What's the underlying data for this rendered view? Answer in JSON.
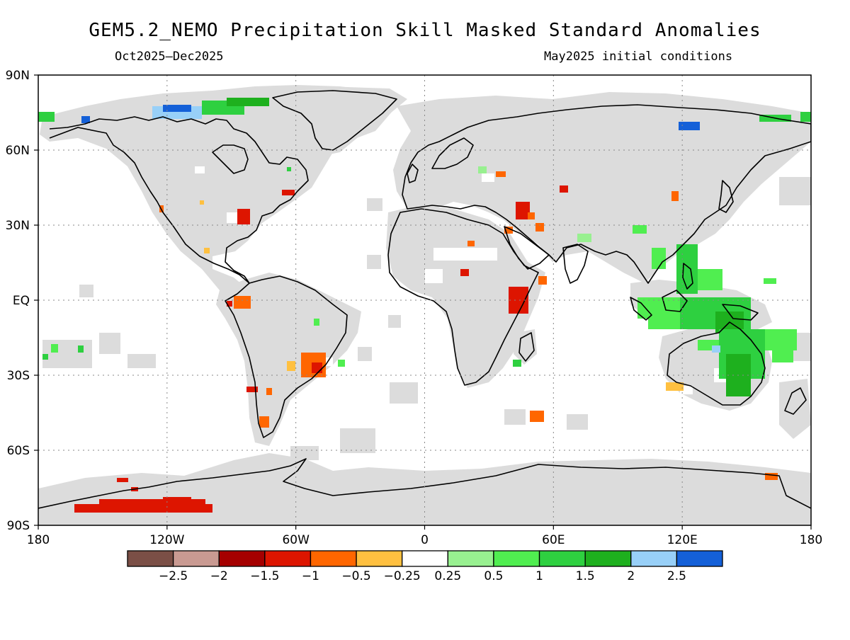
{
  "title": "GEM5.2_NEMO Precipitation Skill Masked Standard Anomalies",
  "subtitle_left": "Oct2025–Dec2025",
  "subtitle_right": "May2025 initial conditions",
  "axes": {
    "lat_ticks": [
      "90N",
      "60N",
      "30N",
      "EQ",
      "30S",
      "60S",
      "90S"
    ],
    "lon_ticks": [
      "180",
      "120W",
      "60W",
      "0",
      "60E",
      "120E",
      "180"
    ],
    "lat_values": [
      90,
      60,
      30,
      0,
      -30,
      -60,
      -90
    ],
    "lon_values": [
      -180,
      -120,
      -60,
      0,
      60,
      120,
      180
    ]
  },
  "colors": {
    "ocean": "#ffffff",
    "land_mask": "#dcdcdc",
    "coast": "#000000",
    "grid": "#888888"
  },
  "colorbar": {
    "bins": [
      {
        "color": "#7b4f46"
      },
      {
        "color": "#c99a92"
      },
      {
        "color": "#a50000"
      },
      {
        "color": "#dd1500"
      },
      {
        "color": "#ff6600"
      },
      {
        "color": "#ffc040"
      },
      {
        "color": "#ffffff"
      },
      {
        "color": "#98f090"
      },
      {
        "color": "#50ee50"
      },
      {
        "color": "#2ed040"
      },
      {
        "color": "#1eb01e"
      },
      {
        "color": "#98d0f8"
      },
      {
        "color": "#1460d8"
      }
    ],
    "labels": [
      "−2.5",
      "−2",
      "−1.5",
      "−1",
      "−0.5",
      "−0.25",
      "0.25",
      "0.5",
      "1",
      "1.5",
      "2",
      "2.5"
    ]
  },
  "anomaly_regions": [
    {
      "name": "greenland-north",
      "lon": -40,
      "lat": 75,
      "color": "#1460d8"
    },
    {
      "name": "canadian-arctic",
      "lon": -70,
      "lat": 76,
      "color": "#98d0f8"
    },
    {
      "name": "baffin-green",
      "lon": -55,
      "lat": 77,
      "color": "#2ed040"
    },
    {
      "name": "east-us",
      "lon": -76,
      "lat": 37,
      "color": "#dd1500"
    },
    {
      "name": "northeast-us",
      "lon": -68,
      "lat": 45,
      "color": "#dd1500"
    },
    {
      "name": "colombia",
      "lon": -76,
      "lat": 2,
      "color": "#ff6600"
    },
    {
      "name": "south-brazil",
      "lon": -52,
      "lat": -28,
      "color": "#ff6600"
    },
    {
      "name": "patagonia",
      "lon": -72,
      "lat": -47,
      "color": "#ff6600"
    },
    {
      "name": "east-africa",
      "lon": 42,
      "lat": -1,
      "color": "#dd1500"
    },
    {
      "name": "iran",
      "lon": 48,
      "lat": 36,
      "color": "#dd1500"
    },
    {
      "name": "maritime-continent",
      "lon": 125,
      "lat": 0,
      "color": "#50ee50"
    },
    {
      "name": "philippines",
      "lon": 124,
      "lat": 12,
      "color": "#2ed040"
    },
    {
      "name": "australia-east",
      "lon": 145,
      "lat": -25,
      "color": "#2ed040"
    },
    {
      "name": "west-antarctica",
      "lon": -125,
      "lat": -77,
      "color": "#dd1500"
    }
  ]
}
